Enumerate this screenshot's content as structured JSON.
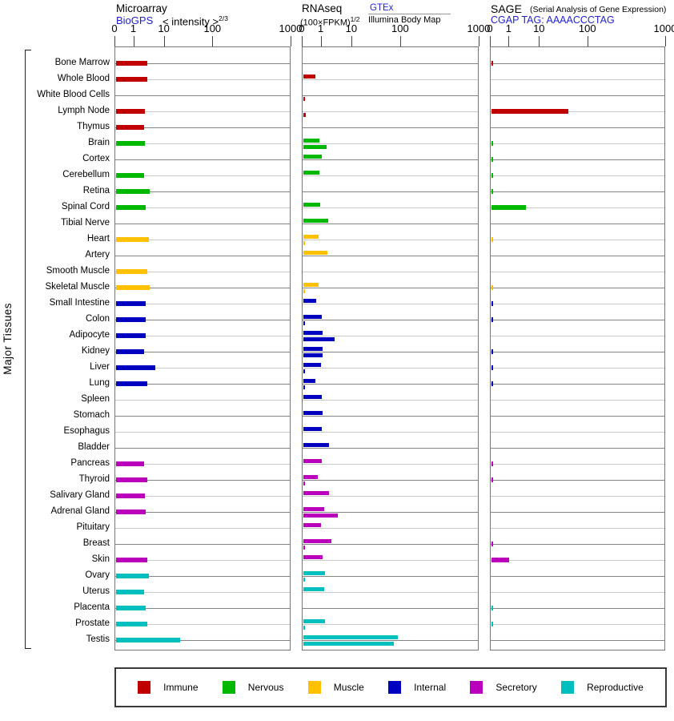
{
  "header": {
    "microarray": {
      "title": "Microarray",
      "link": "BioGPS",
      "subtitle": "< intensity >",
      "exponent": "2/3"
    },
    "rnaseq": {
      "title": "RNAseq",
      "formula": "(100×FPKM)",
      "exponent": "1/2",
      "link": "GTEx",
      "source2": "Illumina Body Map"
    },
    "sage": {
      "title": "SAGE",
      "note": "(Serial Analysis of Gene Expression)",
      "link": "CGAP",
      "tag": "TAG: AAAACCCTAG"
    }
  },
  "chart_data": {
    "type": "bar",
    "orientation": "horizontal",
    "ylabel": "Major Tissues",
    "axis_ticks": [
      "0",
      "1",
      "10",
      "100",
      "1000"
    ],
    "axis_scale": "pseudo-log from 0 to 1000, compressed decades",
    "panels": [
      "Microarray (BioGPS)",
      "RNAseq GTEx",
      "RNAseq Illumina Body Map",
      "SAGE (CGAP)"
    ],
    "groups": [
      {
        "name": "Immune",
        "color": "#c00000"
      },
      {
        "name": "Nervous",
        "color": "#00b800"
      },
      {
        "name": "Muscle",
        "color": "#ffc000"
      },
      {
        "name": "Internal",
        "color": "#0000c0"
      },
      {
        "name": "Secretory",
        "color": "#bb00bb"
      },
      {
        "name": "Reproductive",
        "color": "#00bfbf"
      }
    ],
    "tissues": [
      {
        "name": "Bone Marrow",
        "group": "Immune",
        "microarray": 2.6,
        "rnaseq_gtex": null,
        "rnaseq_illumina": null,
        "sage": 0.08
      },
      {
        "name": "Whole Blood",
        "group": "Immune",
        "microarray": 2.5,
        "rnaseq_gtex": 0.64,
        "rnaseq_illumina": null,
        "sage": null
      },
      {
        "name": "White Blood Cells",
        "group": "Immune",
        "microarray": null,
        "rnaseq_gtex": null,
        "rnaseq_illumina": 0.1,
        "sage": null
      },
      {
        "name": "Lymph Node",
        "group": "Immune",
        "microarray": 2.1,
        "rnaseq_gtex": null,
        "rnaseq_illumina": 0.14,
        "sage": 37
      },
      {
        "name": "Thymus",
        "group": "Immune",
        "microarray": 1.95,
        "rnaseq_gtex": null,
        "rnaseq_illumina": null,
        "sage": null
      },
      {
        "name": "Brain",
        "group": "Nervous",
        "microarray": 2.1,
        "rnaseq_gtex": 0.85,
        "rnaseq_illumina": 1.4,
        "sage": 0.08
      },
      {
        "name": "Cortex",
        "group": "Nervous",
        "microarray": null,
        "rnaseq_gtex": 0.97,
        "rnaseq_illumina": null,
        "sage": 0.08
      },
      {
        "name": "Cerebellum",
        "group": "Nervous",
        "microarray": 2.0,
        "rnaseq_gtex": 0.85,
        "rnaseq_illumina": null,
        "sage": 0.08
      },
      {
        "name": "Retina",
        "group": "Nervous",
        "microarray": 3.1,
        "rnaseq_gtex": null,
        "rnaseq_illumina": null,
        "sage": 0.08
      },
      {
        "name": "Spinal Cord",
        "group": "Nervous",
        "microarray": 2.3,
        "rnaseq_gtex": 0.89,
        "rnaseq_illumina": null,
        "sage": 3.2
      },
      {
        "name": "Tibial Nerve",
        "group": "Nervous",
        "microarray": null,
        "rnaseq_gtex": 1.55,
        "rnaseq_illumina": null,
        "sage": null
      },
      {
        "name": "Heart",
        "group": "Muscle",
        "microarray": 2.85,
        "rnaseq_gtex": 0.8,
        "rnaseq_illumina": 0.1,
        "sage": 0.08
      },
      {
        "name": "Artery",
        "group": "Muscle",
        "microarray": null,
        "rnaseq_gtex": 1.46,
        "rnaseq_illumina": null,
        "sage": null
      },
      {
        "name": "Smooth Muscle",
        "group": "Muscle",
        "microarray": 2.5,
        "rnaseq_gtex": null,
        "rnaseq_illumina": null,
        "sage": null
      },
      {
        "name": "Skeletal Muscle",
        "group": "Muscle",
        "microarray": 3.0,
        "rnaseq_gtex": 0.8,
        "rnaseq_illumina": 0.08,
        "sage": 0.08
      },
      {
        "name": "Small Intestine",
        "group": "Internal",
        "microarray": 2.3,
        "rnaseq_gtex": 0.68,
        "rnaseq_illumina": null,
        "sage": 0.08
      },
      {
        "name": "Colon",
        "group": "Internal",
        "microarray": 2.25,
        "rnaseq_gtex": 0.97,
        "rnaseq_illumina": 0.1,
        "sage": 0.08
      },
      {
        "name": "Adipocyte",
        "group": "Internal",
        "microarray": 2.2,
        "rnaseq_gtex": 1.0,
        "rnaseq_illumina": 2.5,
        "sage": null
      },
      {
        "name": "Kidney",
        "group": "Internal",
        "microarray": 1.95,
        "rnaseq_gtex": 1.0,
        "rnaseq_illumina": 1.0,
        "sage": 0.08
      },
      {
        "name": "Liver",
        "group": "Internal",
        "microarray": 4.6,
        "rnaseq_gtex": 0.93,
        "rnaseq_illumina": 0.07,
        "sage": 0.08
      },
      {
        "name": "Lung",
        "group": "Internal",
        "microarray": 2.5,
        "rnaseq_gtex": 0.64,
        "rnaseq_illumina": 0.07,
        "sage": 0.08
      },
      {
        "name": "Spleen",
        "group": "Internal",
        "microarray": null,
        "rnaseq_gtex": 0.97,
        "rnaseq_illumina": null,
        "sage": null
      },
      {
        "name": "Stomach",
        "group": "Internal",
        "microarray": null,
        "rnaseq_gtex": 1.03,
        "rnaseq_illumina": null,
        "sage": null
      },
      {
        "name": "Esophagus",
        "group": "Internal",
        "microarray": null,
        "rnaseq_gtex": 0.97,
        "rnaseq_illumina": null,
        "sage": null
      },
      {
        "name": "Bladder",
        "group": "Internal",
        "microarray": null,
        "rnaseq_gtex": 1.65,
        "rnaseq_illumina": null,
        "sage": null
      },
      {
        "name": "Pancreas",
        "group": "Secretory",
        "microarray": 1.97,
        "rnaseq_gtex": 0.97,
        "rnaseq_illumina": null,
        "sage": 0.08
      },
      {
        "name": "Thyroid",
        "group": "Secretory",
        "microarray": 2.6,
        "rnaseq_gtex": 0.76,
        "rnaseq_illumina": 0.05,
        "sage": 0.08
      },
      {
        "name": "Salivary Gland",
        "group": "Secretory",
        "microarray": 2.1,
        "rnaseq_gtex": 1.65,
        "rnaseq_illumina": null,
        "sage": null
      },
      {
        "name": "Adrenal Gland",
        "group": "Secretory",
        "microarray": 2.2,
        "rnaseq_gtex": 1.15,
        "rnaseq_illumina": 3.2,
        "sage": null
      },
      {
        "name": "Pituitary",
        "group": "Secretory",
        "microarray": null,
        "rnaseq_gtex": 0.93,
        "rnaseq_illumina": null,
        "sage": null
      },
      {
        "name": "Breast",
        "group": "Secretory",
        "microarray": null,
        "rnaseq_gtex": 1.94,
        "rnaseq_illumina": 0.07,
        "sage": 0.08
      },
      {
        "name": "Skin",
        "group": "Secretory",
        "microarray": 2.5,
        "rnaseq_gtex": 1.04,
        "rnaseq_illumina": null,
        "sage": 0.95
      },
      {
        "name": "Ovary",
        "group": "Reproductive",
        "microarray": 2.8,
        "rnaseq_gtex": 1.24,
        "rnaseq_illumina": 0.08,
        "sage": null
      },
      {
        "name": "Uterus",
        "group": "Reproductive",
        "microarray": 2.0,
        "rnaseq_gtex": 1.15,
        "rnaseq_illumina": null,
        "sage": null
      },
      {
        "name": "Placenta",
        "group": "Reproductive",
        "microarray": 2.3,
        "rnaseq_gtex": null,
        "rnaseq_illumina": null,
        "sage": 0.08
      },
      {
        "name": "Prostate",
        "group": "Reproductive",
        "microarray": 2.5,
        "rnaseq_gtex": 1.24,
        "rnaseq_illumina": 0.1,
        "sage": 0.08
      },
      {
        "name": "Testis",
        "group": "Reproductive",
        "microarray": 20,
        "rnaseq_gtex": 83,
        "rnaseq_illumina": 69,
        "sage": null
      }
    ]
  }
}
